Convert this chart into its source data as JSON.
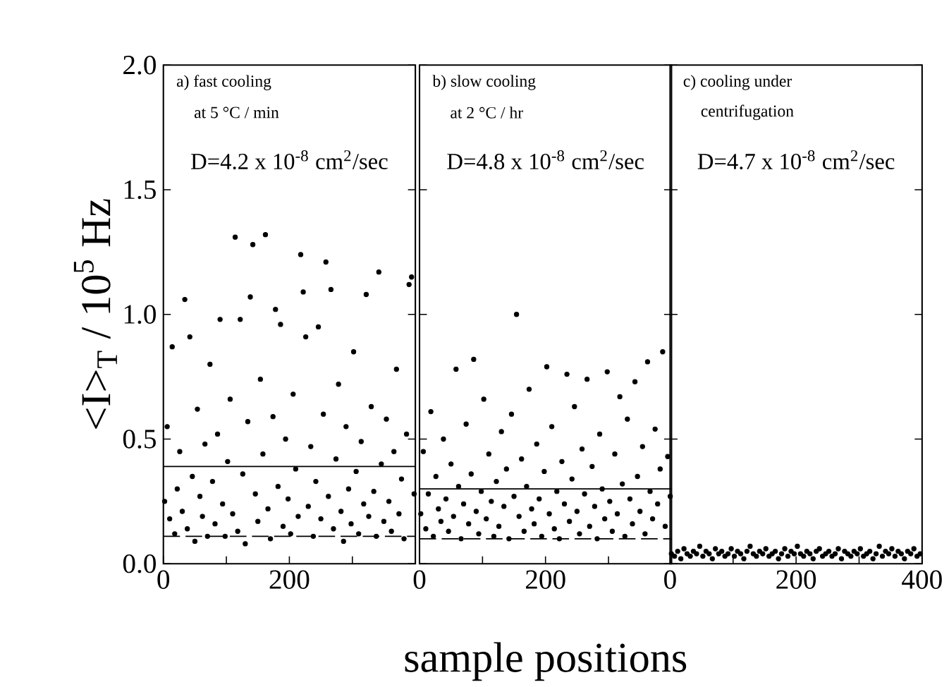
{
  "chart_data": [
    {
      "type": "scatter",
      "color": "#000000",
      "ylabel": "<I>$_{T}$ / 10$^{5}$ Hz",
      "annotations": [
        "a)  fast cooling",
        "at 5 °C / min",
        "D=4.2 x 10$^{-8}$ cm$^{2}$/sec"
      ],
      "xlim": [
        0,
        400
      ],
      "xticks": [
        0,
        {
          "value": 100,
          "label": null
        },
        200,
        {
          "value": 300,
          "label": null
        },
        {
          "value": 400,
          "label": null
        }
      ],
      "ylim": [
        0,
        2.0
      ],
      "yticks": [
        {
          "value": 0,
          "label": "0.0"
        },
        0.5,
        {
          "value": 1,
          "label": "1.0"
        },
        1.5,
        {
          "value": 2,
          "label": "2.0"
        }
      ],
      "ref_lines": [
        {
          "axis": "y",
          "value": 0.39,
          "line_style": "solid"
        },
        {
          "axis": "y",
          "value": 0.11,
          "line_style": "dashed"
        }
      ],
      "x": [
        2,
        6,
        10,
        14,
        18,
        22,
        26,
        30,
        34,
        38,
        42,
        46,
        50,
        54,
        58,
        62,
        66,
        70,
        74,
        78,
        82,
        86,
        90,
        94,
        98,
        102,
        106,
        110,
        114,
        118,
        122,
        126,
        130,
        134,
        138,
        142,
        146,
        150,
        154,
        158,
        162,
        166,
        170,
        174,
        178,
        182,
        186,
        190,
        194,
        198,
        202,
        206,
        210,
        214,
        218,
        222,
        226,
        230,
        234,
        238,
        242,
        246,
        250,
        254,
        258,
        262,
        266,
        270,
        274,
        278,
        282,
        286,
        290,
        294,
        298,
        302,
        306,
        310,
        314,
        318,
        322,
        326,
        330,
        334,
        338,
        342,
        346,
        350,
        354,
        358,
        362,
        366,
        370,
        374,
        378,
        382,
        386,
        390,
        394,
        398
      ],
      "values": [
        0.25,
        0.55,
        0.18,
        0.87,
        0.12,
        0.3,
        0.45,
        0.21,
        1.06,
        0.14,
        0.91,
        0.35,
        0.09,
        0.62,
        0.27,
        0.19,
        0.48,
        0.11,
        0.8,
        0.33,
        0.16,
        0.52,
        0.98,
        0.24,
        0.11,
        0.41,
        0.66,
        0.2,
        1.31,
        0.13,
        0.98,
        0.36,
        0.08,
        0.57,
        1.07,
        1.28,
        0.28,
        0.17,
        0.74,
        0.44,
        1.32,
        0.22,
        0.1,
        0.59,
        1.02,
        0.31,
        0.96,
        0.15,
        0.5,
        0.26,
        0.12,
        0.68,
        0.38,
        0.19,
        1.24,
        1.09,
        0.91,
        0.23,
        0.47,
        0.11,
        0.33,
        0.95,
        0.18,
        0.6,
        1.21,
        0.27,
        1.1,
        0.14,
        0.42,
        0.72,
        0.21,
        0.09,
        0.55,
        0.3,
        0.16,
        0.85,
        0.37,
        0.12,
        0.49,
        0.24,
        1.08,
        0.19,
        0.63,
        0.29,
        0.11,
        1.17,
        0.4,
        0.17,
        0.58,
        0.25,
        0.13,
        0.45,
        0.78,
        0.2,
        0.34,
        0.1,
        0.52,
        1.12,
        1.15,
        0.28
      ]
    },
    {
      "type": "scatter",
      "color": "#000000",
      "xlabel": "sample positions",
      "tick_labels": "x",
      "annotations": [
        "b)  slow cooling",
        "at 2 °C / hr",
        "D=4.8 x 10$^{-8}$ cm$^{2}$/sec"
      ],
      "xlim": [
        0,
        400
      ],
      "xticks": [
        0,
        {
          "value": 100,
          "label": null
        },
        200,
        {
          "value": 300,
          "label": null
        },
        {
          "value": 400,
          "label": null
        }
      ],
      "ylim": [
        0,
        2.0
      ],
      "yticks": [
        0,
        0.5,
        1,
        1.5,
        2
      ],
      "ref_lines": [
        {
          "axis": "y",
          "value": 0.3,
          "line_style": "solid"
        },
        {
          "axis": "y",
          "value": 0.1,
          "line_style": "dashed"
        }
      ],
      "x": [
        2,
        6,
        10,
        14,
        18,
        22,
        26,
        30,
        34,
        38,
        42,
        46,
        50,
        54,
        58,
        62,
        66,
        70,
        74,
        78,
        82,
        86,
        90,
        94,
        98,
        102,
        106,
        110,
        114,
        118,
        122,
        126,
        130,
        134,
        138,
        142,
        146,
        150,
        154,
        158,
        162,
        166,
        170,
        174,
        178,
        182,
        186,
        190,
        194,
        198,
        202,
        206,
        210,
        214,
        218,
        222,
        226,
        230,
        234,
        238,
        242,
        246,
        250,
        254,
        258,
        262,
        266,
        270,
        274,
        278,
        282,
        286,
        290,
        294,
        298,
        302,
        306,
        310,
        314,
        318,
        322,
        326,
        330,
        334,
        338,
        342,
        346,
        350,
        354,
        358,
        362,
        366,
        370,
        374,
        378,
        382,
        386,
        390,
        394,
        398
      ],
      "values": [
        0.2,
        0.45,
        0.14,
        0.28,
        0.61,
        0.11,
        0.35,
        0.22,
        0.17,
        0.5,
        0.26,
        0.13,
        0.4,
        0.19,
        0.78,
        0.31,
        0.1,
        0.24,
        0.56,
        0.16,
        0.36,
        0.82,
        0.21,
        0.12,
        0.29,
        0.66,
        0.18,
        0.44,
        0.25,
        0.11,
        0.33,
        0.15,
        0.53,
        0.23,
        0.38,
        0.1,
        0.6,
        0.27,
        1.0,
        0.19,
        0.42,
        0.13,
        0.31,
        0.7,
        0.22,
        0.16,
        0.48,
        0.26,
        0.11,
        0.37,
        0.79,
        0.2,
        0.55,
        0.14,
        0.29,
        0.1,
        0.41,
        0.24,
        0.76,
        0.17,
        0.34,
        0.63,
        0.21,
        0.12,
        0.46,
        0.28,
        0.74,
        0.15,
        0.39,
        0.23,
        0.1,
        0.52,
        0.3,
        0.18,
        0.77,
        0.25,
        0.13,
        0.44,
        0.2,
        0.67,
        0.32,
        0.11,
        0.58,
        0.26,
        0.16,
        0.73,
        0.35,
        0.21,
        0.47,
        0.12,
        0.81,
        0.29,
        0.18,
        0.54,
        0.24,
        0.38,
        0.85,
        0.15,
        0.43,
        0.27
      ]
    },
    {
      "type": "scatter",
      "color": "#000000",
      "tick_labels": "x",
      "annotations": [
        "c)  cooling under",
        "centrifugation",
        "D=4.7 x 10$^{-8}$ cm$^{2}$/sec"
      ],
      "xlim": [
        0,
        400
      ],
      "xticks": [
        0,
        {
          "value": 100,
          "label": null
        },
        200,
        {
          "value": 300,
          "label": null
        },
        400
      ],
      "ylim": [
        0,
        2.0
      ],
      "yticks": [
        0,
        0.5,
        1,
        1.5,
        2
      ],
      "x": [
        2,
        7,
        12,
        17,
        22,
        27,
        32,
        37,
        42,
        47,
        52,
        57,
        62,
        67,
        72,
        77,
        82,
        87,
        92,
        97,
        102,
        107,
        112,
        117,
        122,
        127,
        132,
        137,
        142,
        147,
        152,
        157,
        162,
        167,
        172,
        177,
        182,
        187,
        192,
        197,
        202,
        207,
        212,
        217,
        222,
        227,
        232,
        237,
        242,
        247,
        252,
        257,
        262,
        267,
        272,
        277,
        282,
        287,
        292,
        297,
        302,
        307,
        312,
        317,
        322,
        327,
        332,
        337,
        342,
        347,
        352,
        357,
        362,
        367,
        372,
        377,
        382,
        387,
        392,
        397
      ],
      "values": [
        0.04,
        0.03,
        0.05,
        0.02,
        0.06,
        0.04,
        0.03,
        0.05,
        0.04,
        0.07,
        0.03,
        0.05,
        0.04,
        0.02,
        0.06,
        0.04,
        0.05,
        0.03,
        0.04,
        0.06,
        0.03,
        0.05,
        0.04,
        0.02,
        0.05,
        0.07,
        0.04,
        0.03,
        0.05,
        0.04,
        0.06,
        0.03,
        0.04,
        0.05,
        0.02,
        0.04,
        0.06,
        0.03,
        0.05,
        0.04,
        0.07,
        0.04,
        0.03,
        0.05,
        0.04,
        0.02,
        0.05,
        0.06,
        0.03,
        0.04,
        0.05,
        0.03,
        0.04,
        0.06,
        0.02,
        0.05,
        0.04,
        0.03,
        0.05,
        0.04,
        0.06,
        0.03,
        0.04,
        0.05,
        0.02,
        0.04,
        0.07,
        0.03,
        0.05,
        0.04,
        0.06,
        0.03,
        0.05,
        0.04,
        0.02,
        0.05,
        0.04,
        0.06,
        0.03,
        0.04
      ]
    }
  ]
}
